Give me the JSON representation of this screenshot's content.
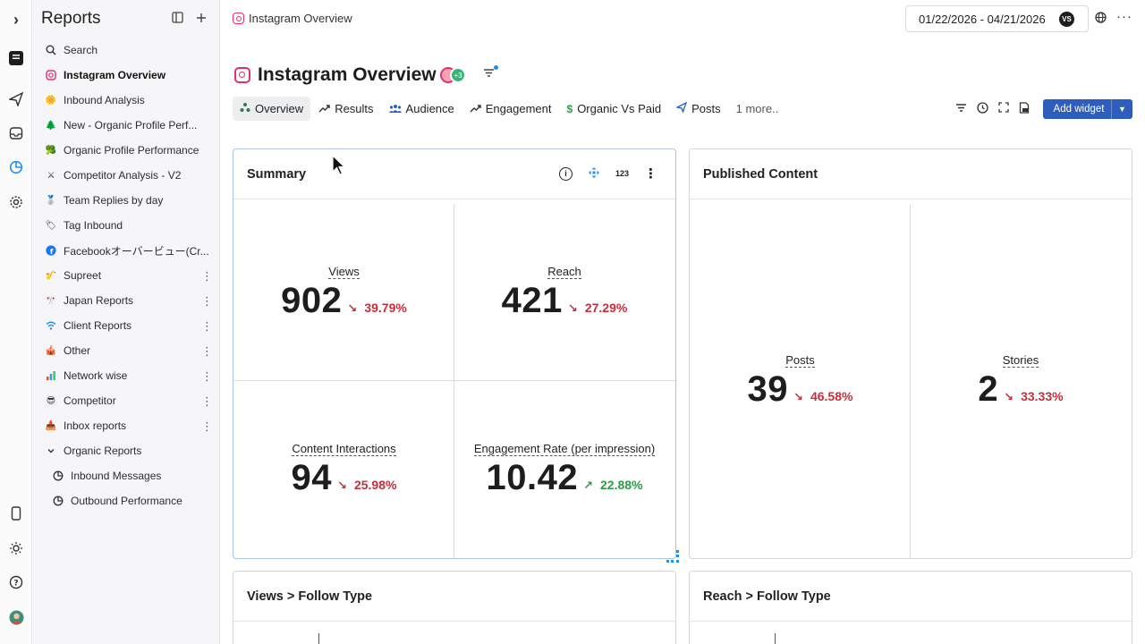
{
  "sidebar": {
    "title": "Reports",
    "items": [
      {
        "label": "Search",
        "icon": "search-icon"
      },
      {
        "label": "Instagram Overview",
        "icon": "instagram-icon",
        "active": true
      },
      {
        "label": "Inbound Analysis",
        "icon": "emoji-icon"
      },
      {
        "label": "New - Organic Profile Perf...",
        "icon": "tree-icon"
      },
      {
        "label": "Organic Profile Performance",
        "icon": "emoji-icon"
      },
      {
        "label": "Competitor Analysis - V2",
        "icon": "swords-icon"
      },
      {
        "label": "Team Replies by day",
        "icon": "medal-icon"
      },
      {
        "label": "Tag Inbound",
        "icon": "tag-icon"
      },
      {
        "label": "Facebookオーバービュー(Cr...",
        "icon": "facebook-icon"
      },
      {
        "label": "Supreet",
        "icon": "emoji-icon"
      },
      {
        "label": "Japan Reports",
        "icon": "emoji-icon"
      },
      {
        "label": "Client Reports",
        "icon": "wifi-icon"
      },
      {
        "label": "Other",
        "icon": "emoji-icon"
      },
      {
        "label": "Network wise",
        "icon": "chart-icon"
      },
      {
        "label": "Competitor",
        "icon": "emoji-icon"
      },
      {
        "label": "Inbox reports",
        "icon": "inbox-icon"
      },
      {
        "label": "Organic Reports",
        "icon": "chevron-down-icon"
      },
      {
        "label": "Inbound Messages",
        "icon": "report-icon"
      },
      {
        "label": "Outbound Performance",
        "icon": "report-icon"
      }
    ]
  },
  "header": {
    "breadcrumb": "Instagram Overview",
    "date_range": "01/22/2026 - 04/21/2026",
    "vs_label": "VS"
  },
  "page": {
    "title": "Instagram Overview",
    "avatar_badge": "+3"
  },
  "tabs": [
    {
      "label": "Overview",
      "icon": "network-icon",
      "active": true
    },
    {
      "label": "Results",
      "icon": "trend-icon"
    },
    {
      "label": "Audience",
      "icon": "people-icon"
    },
    {
      "label": "Engagement",
      "icon": "trend-icon"
    },
    {
      "label": "Organic Vs Paid",
      "icon": "dollar-icon"
    },
    {
      "label": "Posts",
      "icon": "send-icon"
    },
    {
      "label": "1 more..",
      "icon": ""
    }
  ],
  "toolbar": {
    "add_widget_label": "Add widget"
  },
  "summary": {
    "title": "Summary",
    "num_toggle": "123",
    "metrics": [
      {
        "label": "Views",
        "value": "902",
        "change": "39.79%",
        "direction": "down"
      },
      {
        "label": "Reach",
        "value": "421",
        "change": "27.29%",
        "direction": "down"
      },
      {
        "label": "Content Interactions",
        "value": "94",
        "change": "25.98%",
        "direction": "down"
      },
      {
        "label": "Engagement Rate (per impression)",
        "value": "10.42",
        "change": "22.88%",
        "direction": "up"
      }
    ]
  },
  "published": {
    "title": "Published Content",
    "metrics": [
      {
        "label": "Posts",
        "value": "39",
        "change": "46.58%",
        "direction": "down"
      },
      {
        "label": "Stories",
        "value": "2",
        "change": "33.33%",
        "direction": "down"
      }
    ]
  },
  "bottom_cards": [
    {
      "title": "Views > Follow Type"
    },
    {
      "title": "Reach > Follow Type"
    }
  ],
  "colors": {
    "down": "#c62e3c",
    "up": "#2e9a48",
    "accent": "#2d5dbd",
    "instagram": "#e1306c"
  }
}
